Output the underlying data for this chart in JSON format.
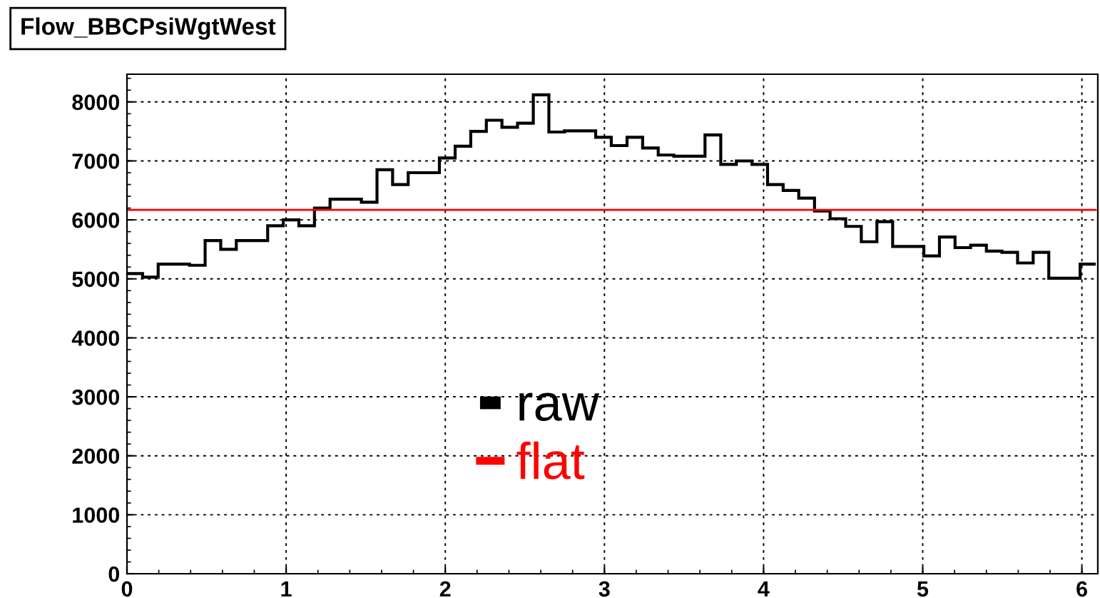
{
  "chart_data": {
    "type": "histogram",
    "title": "Flow_BBCPsiWgtWest",
    "bins": [
      0,
      0.098,
      0.196,
      0.295,
      0.393,
      0.491,
      0.589,
      0.687,
      0.785,
      0.884,
      0.982,
      1.08,
      1.178,
      1.276,
      1.374,
      1.473,
      1.571,
      1.669,
      1.767,
      1.865,
      1.963,
      2.062,
      2.16,
      2.258,
      2.356,
      2.454,
      2.553,
      2.651,
      2.749,
      2.847,
      2.945,
      3.043,
      3.142,
      3.24,
      3.338,
      3.436,
      3.534,
      3.632,
      3.731,
      3.829,
      3.927,
      4.025,
      4.123,
      4.221,
      4.32,
      4.418,
      4.516,
      4.614,
      4.712,
      4.811,
      4.909,
      5.007,
      5.105,
      5.203,
      5.301,
      5.4,
      5.498,
      5.596,
      5.694,
      5.792,
      5.89,
      5.989,
      6.087
    ],
    "series": [
      {
        "name": "raw",
        "color": "#000000",
        "type": "histogram",
        "values": [
          5090,
          5030,
          5250,
          5250,
          5230,
          5650,
          5500,
          5650,
          5650,
          5900,
          6000,
          5900,
          6200,
          6350,
          6350,
          6300,
          6850,
          6600,
          6800,
          6800,
          7050,
          7250,
          7500,
          7690,
          7570,
          7640,
          8120,
          7490,
          7510,
          7510,
          7400,
          7260,
          7400,
          7220,
          7100,
          7080,
          7080,
          7440,
          6940,
          7000,
          6940,
          6600,
          6500,
          6370,
          6150,
          6020,
          5890,
          5630,
          5970,
          5550,
          5550,
          5390,
          5710,
          5530,
          5570,
          5470,
          5450,
          5270,
          5450,
          5010,
          5010,
          5250
        ]
      },
      {
        "name": "flat",
        "color": "#ff0000",
        "type": "line",
        "x": [
          0,
          6.087
        ],
        "values": [
          6170,
          6170
        ]
      }
    ],
    "xlim": [
      0,
      6.1
    ],
    "xticks": [
      0,
      1,
      2,
      3,
      4,
      5,
      6
    ],
    "ylim": [
      0,
      8470
    ],
    "yticks": [
      0,
      1000,
      2000,
      3000,
      4000,
      5000,
      6000,
      7000,
      8000
    ],
    "grid": true,
    "legend": "center"
  }
}
